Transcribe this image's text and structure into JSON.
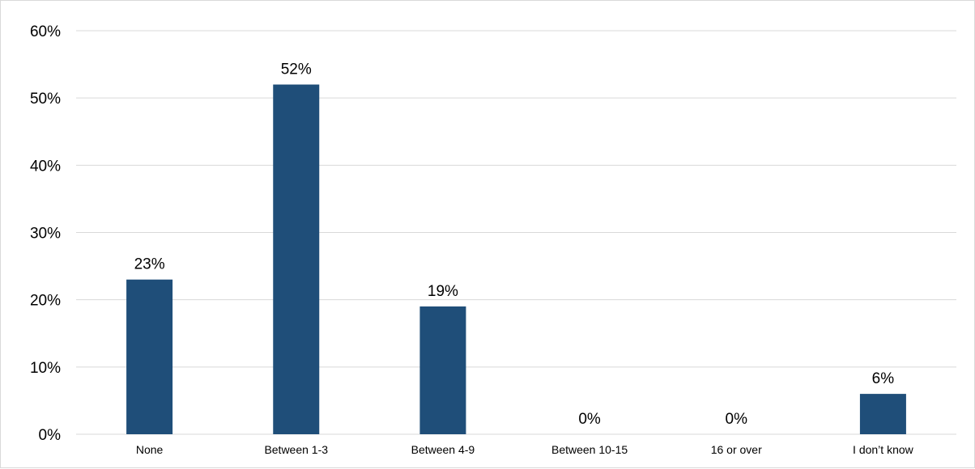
{
  "chart_data": {
    "type": "bar",
    "title": "",
    "xlabel": "",
    "ylabel": "",
    "categories": [
      "None",
      "Between 1-3",
      "Between 4-9",
      "Between 10-15",
      "16 or over",
      "I don’t know"
    ],
    "values": [
      23,
      52,
      19,
      0,
      0,
      6
    ],
    "value_labels": [
      "23%",
      "52%",
      "19%",
      "0%",
      "0%",
      "6%"
    ],
    "ylim": [
      0,
      60
    ],
    "yticks": [
      0,
      10,
      20,
      30,
      40,
      50,
      60
    ],
    "ytick_labels": [
      "0%",
      "10%",
      "20%",
      "30%",
      "40%",
      "50%",
      "60%"
    ],
    "grid": true,
    "legend": "none",
    "bar_color": "#1f4e79",
    "grid_color": "#d9d9d9"
  }
}
